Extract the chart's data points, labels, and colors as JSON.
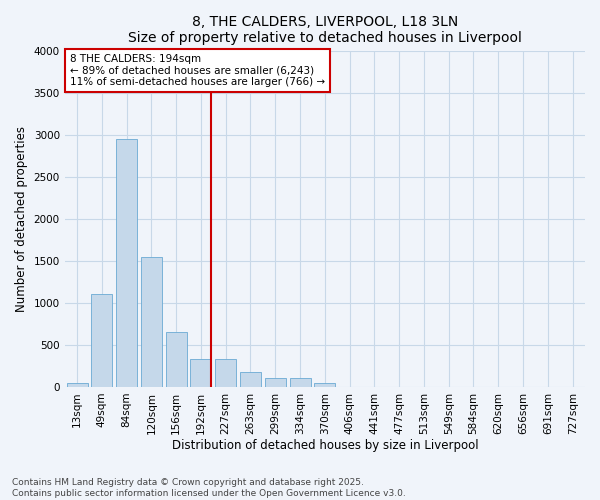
{
  "title": "8, THE CALDERS, LIVERPOOL, L18 3LN",
  "subtitle": "Size of property relative to detached houses in Liverpool",
  "xlabel": "Distribution of detached houses by size in Liverpool",
  "ylabel": "Number of detached properties",
  "categories": [
    "13sqm",
    "49sqm",
    "84sqm",
    "120sqm",
    "156sqm",
    "192sqm",
    "227sqm",
    "263sqm",
    "299sqm",
    "334sqm",
    "370sqm",
    "406sqm",
    "441sqm",
    "477sqm",
    "513sqm",
    "549sqm",
    "584sqm",
    "620sqm",
    "656sqm",
    "691sqm",
    "727sqm"
  ],
  "values": [
    50,
    1100,
    2950,
    1550,
    650,
    330,
    330,
    175,
    105,
    105,
    50,
    5,
    3,
    2,
    2,
    2,
    5,
    2,
    1,
    1,
    1
  ],
  "bar_color": "#c5d8ea",
  "bar_edge_color": "#6aaad4",
  "vline_index": 5,
  "vline_color": "#cc0000",
  "annotation_line1": "8 THE CALDERS: 194sqm",
  "annotation_line2": "← 89% of detached houses are smaller (6,243)",
  "annotation_line3": "11% of semi-detached houses are larger (766) →",
  "annotation_box_color": "#cc0000",
  "annotation_fill": "#ffffff",
  "ylim": [
    0,
    4000
  ],
  "yticks": [
    0,
    500,
    1000,
    1500,
    2000,
    2500,
    3000,
    3500,
    4000
  ],
  "background_color": "#f0f4fa",
  "plot_bg_color": "#f0f4fa",
  "footer_line1": "Contains HM Land Registry data © Crown copyright and database right 2025.",
  "footer_line2": "Contains public sector information licensed under the Open Government Licence v3.0.",
  "title_fontsize": 10,
  "subtitle_fontsize": 9.5,
  "axis_label_fontsize": 8.5,
  "tick_fontsize": 7.5,
  "annotation_fontsize": 7.5,
  "footer_fontsize": 6.5
}
